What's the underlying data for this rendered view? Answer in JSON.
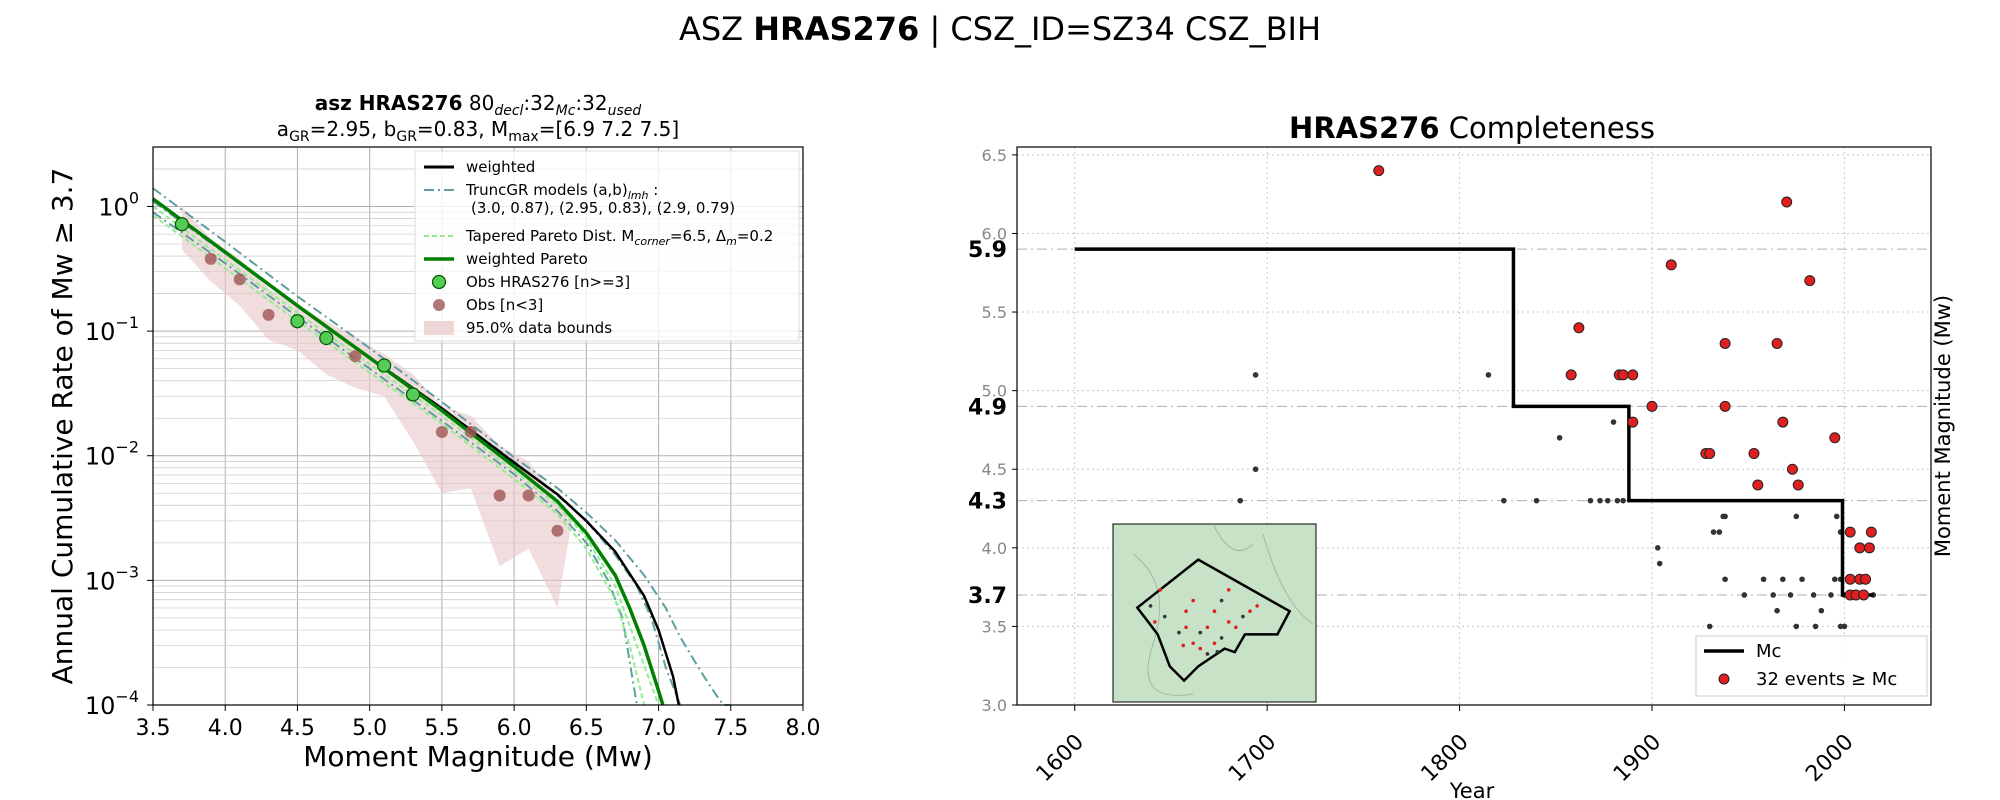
{
  "suptitle": {
    "prefix": "ASZ ",
    "bold": "HRAS276",
    "suffix": " | CSZ_ID=SZ34 CSZ_BIH"
  },
  "colors": {
    "weighted": "#000000",
    "truncgr": "#5f9ea0",
    "tapered": "#90ee90",
    "wpareto": "#008000",
    "obs_main": "#55cc55",
    "obs_low": "#a05555",
    "band": "#e8c6c6",
    "mc_events": "#e02020",
    "small_events": "#333333",
    "map_bg": "#c8e2c8"
  },
  "chart_data": [
    {
      "type": "line",
      "title_line1": {
        "bold": "asz HRAS276",
        "rest": "  80",
        "sub1": "decl",
        "t2": ":32",
        "sub2": "Mc",
        "t3": ":32",
        "sub3": "used"
      },
      "title_line2": {
        "a": "a",
        "a_sub": "GR",
        "a_val": "=2.95,  b",
        "b_sub": "GR",
        "b_val": "=0.83, M",
        "m_sub": "max",
        "m_val": "=[6.9 7.2 7.5]"
      },
      "xlabel": "Moment Magnitude (Mw)",
      "ylabel": "Annual Cumulative Rate of Mw  ≥  3.7",
      "xlim": [
        3.5,
        8.0
      ],
      "ylim": [
        0.0001,
        3
      ],
      "yscale": "log",
      "xticks": [
        "3.5",
        "4.0",
        "4.5",
        "5.0",
        "5.5",
        "6.0",
        "6.5",
        "7.0",
        "7.5",
        "8.0"
      ],
      "yticks": [
        {
          "base": "10",
          "exp": "0",
          "v": 1
        },
        {
          "base": "10",
          "exp": "−1",
          "v": 0.1
        },
        {
          "base": "10",
          "exp": "−2",
          "v": 0.01
        },
        {
          "base": "10",
          "exp": "−3",
          "v": 0.001
        },
        {
          "base": "10",
          "exp": "−4",
          "v": 0.0001
        }
      ],
      "grid": true,
      "legend_position": "top-right",
      "legend": {
        "weighted": "weighted",
        "truncgr_a": "TruncGR models (a,b)",
        "truncgr_sub": "lmh",
        "truncgr_b": " :",
        "truncgr_vals": "(3.0, 0.87), (2.95, 0.83), (2.9, 0.79)",
        "tapered_a": "Tapered Pareto Dist. M",
        "tapered_sub1": "corner",
        "tapered_b": "=6.5, Δ",
        "tapered_sub2": "m",
        "tapered_c": "=0.2",
        "wpareto": "weighted Pareto",
        "obs_main": "Obs HRAS276 [n>=3]",
        "obs_low": "Obs [n<3]",
        "band": "95.0% data bounds"
      },
      "obs_main": [
        [
          3.7,
          0.72
        ],
        [
          4.5,
          0.12
        ],
        [
          4.7,
          0.088
        ],
        [
          5.1,
          0.053
        ],
        [
          5.3,
          0.031
        ]
      ],
      "obs_low": [
        [
          3.9,
          0.38
        ],
        [
          4.1,
          0.26
        ],
        [
          4.3,
          0.135
        ],
        [
          4.9,
          0.063
        ],
        [
          5.5,
          0.0155
        ],
        [
          5.7,
          0.0155
        ],
        [
          5.9,
          0.0048
        ],
        [
          6.1,
          0.0048
        ],
        [
          6.3,
          0.0025
        ]
      ],
      "band_upper": [
        [
          3.7,
          1.0
        ],
        [
          3.9,
          0.55
        ],
        [
          4.1,
          0.38
        ],
        [
          4.3,
          0.22
        ],
        [
          4.5,
          0.16
        ],
        [
          4.7,
          0.12
        ],
        [
          4.9,
          0.09
        ],
        [
          5.1,
          0.065
        ],
        [
          5.3,
          0.045
        ],
        [
          5.5,
          0.025
        ],
        [
          5.7,
          0.021
        ],
        [
          5.9,
          0.012
        ],
        [
          6.1,
          0.009
        ],
        [
          6.3,
          0.0045
        ],
        [
          6.4,
          0.003
        ]
      ],
      "band_lower": [
        [
          3.7,
          0.45
        ],
        [
          3.9,
          0.25
        ],
        [
          4.1,
          0.16
        ],
        [
          4.3,
          0.085
        ],
        [
          4.5,
          0.07
        ],
        [
          4.7,
          0.045
        ],
        [
          4.9,
          0.035
        ],
        [
          5.1,
          0.03
        ],
        [
          5.3,
          0.013
        ],
        [
          5.5,
          0.005
        ],
        [
          5.7,
          0.0055
        ],
        [
          5.9,
          0.0013
        ],
        [
          6.1,
          0.0018
        ],
        [
          6.3,
          0.0006
        ]
      ],
      "series": [
        {
          "key": "truncgr",
          "style": "dashdot",
          "x": [
            3.5,
            4.0,
            4.5,
            5.0,
            5.5,
            6.0,
            6.3,
            6.5,
            6.7,
            6.9,
            7.05,
            7.15,
            7.3,
            7.4,
            7.45,
            7.5
          ],
          "y": [
            1.4,
            0.52,
            0.19,
            0.073,
            0.027,
            0.0097,
            0.0055,
            0.0035,
            0.0021,
            0.0011,
            0.0006,
            0.00035,
            0.00018,
            0.00012,
            0.0001,
            0.0001
          ]
        },
        {
          "key": "truncgr",
          "style": "dashdot",
          "x": [
            3.5,
            4.0,
            4.5,
            5.0,
            5.5,
            6.0,
            6.3,
            6.5,
            6.7,
            6.85,
            6.95,
            7.05,
            7.15
          ],
          "y": [
            1.1,
            0.42,
            0.16,
            0.062,
            0.024,
            0.009,
            0.0048,
            0.003,
            0.0016,
            0.0009,
            0.0005,
            0.0002,
            0.0001
          ]
        },
        {
          "key": "truncgr",
          "style": "dashdot",
          "x": [
            3.5,
            4.0,
            4.5,
            5.0,
            5.5,
            6.0,
            6.3,
            6.5,
            6.65,
            6.75,
            6.85
          ],
          "y": [
            0.9,
            0.35,
            0.13,
            0.05,
            0.019,
            0.0071,
            0.0036,
            0.002,
            0.001,
            0.0005,
            0.0001
          ]
        },
        {
          "key": "tapered",
          "style": "dashed",
          "x": [
            3.5,
            4.5,
            5.5,
            6.0,
            6.3,
            6.5,
            6.7,
            6.85,
            7.0
          ],
          "y": [
            1.0,
            0.14,
            0.021,
            0.0075,
            0.004,
            0.0022,
            0.0009,
            0.0003,
            0.0001
          ]
        },
        {
          "key": "tapered",
          "style": "dashed",
          "x": [
            3.5,
            4.5,
            5.5,
            6.0,
            6.3,
            6.5,
            6.7,
            6.8,
            6.9
          ],
          "y": [
            0.85,
            0.12,
            0.018,
            0.0065,
            0.0034,
            0.0018,
            0.0007,
            0.0003,
            0.0001
          ]
        },
        {
          "key": "weighted",
          "style": "solid",
          "x": [
            3.5,
            4.0,
            4.5,
            5.0,
            5.5,
            6.0,
            6.3,
            6.5,
            6.7,
            6.9,
            7.0,
            7.1,
            7.14
          ],
          "y": [
            1.15,
            0.43,
            0.16,
            0.061,
            0.024,
            0.0088,
            0.0049,
            0.003,
            0.0017,
            0.00075,
            0.0004,
            0.00017,
            0.0001
          ]
        },
        {
          "key": "wpareto",
          "style": "solid",
          "x": [
            3.5,
            4.0,
            4.5,
            5.0,
            5.5,
            6.0,
            6.3,
            6.5,
            6.7,
            6.8,
            6.9,
            7.0,
            7.03
          ],
          "y": [
            1.15,
            0.43,
            0.16,
            0.061,
            0.023,
            0.0082,
            0.0043,
            0.0024,
            0.0011,
            0.0006,
            0.0003,
            0.00013,
            0.0001
          ]
        }
      ]
    },
    {
      "type": "scatter",
      "title": {
        "bold": "HRAS276",
        "rest": " Completeness"
      },
      "xlabel": "Year",
      "ylabel": "Moment Magnitude (Mw)",
      "xlim": [
        1570,
        2045
      ],
      "ylim": [
        3.0,
        6.55
      ],
      "xticks": [
        "1600",
        "1700",
        "1800",
        "1900",
        "2000"
      ],
      "yticks": [
        "3.0",
        "3.5",
        "4.0",
        "4.5",
        "5.0",
        "5.5",
        "6.0",
        "6.5"
      ],
      "mc_labels": [
        "5.9",
        "4.9",
        "4.3",
        "3.7"
      ],
      "grid": true,
      "legend_position": "lower-right",
      "legend": {
        "mc": "Mc",
        "events": "32 events  ≥  Mc"
      },
      "mc_step": [
        [
          1600,
          5.9
        ],
        [
          1828,
          5.9
        ],
        [
          1828,
          4.9
        ],
        [
          1888,
          4.9
        ],
        [
          1888,
          4.3
        ],
        [
          1999,
          4.3
        ],
        [
          1999,
          3.7
        ],
        [
          2015,
          3.7
        ]
      ],
      "events": [
        [
          1758,
          6.4
        ],
        [
          1970,
          6.2
        ],
        [
          1910,
          5.8
        ],
        [
          1982,
          5.7
        ],
        [
          1862,
          5.4
        ],
        [
          1938,
          5.3
        ],
        [
          1965,
          5.3
        ],
        [
          1858,
          5.1
        ],
        [
          1883,
          5.1
        ],
        [
          1885,
          5.1
        ],
        [
          1890,
          5.1
        ],
        [
          1900,
          4.9
        ],
        [
          1938,
          4.9
        ],
        [
          1890,
          4.8
        ],
        [
          1968,
          4.8
        ],
        [
          1928,
          4.6
        ],
        [
          1930,
          4.6
        ],
        [
          1995,
          4.7
        ],
        [
          1953,
          4.6
        ],
        [
          1973,
          4.5
        ],
        [
          1976,
          4.4
        ],
        [
          1955,
          4.4
        ],
        [
          2003,
          4.1
        ],
        [
          2014,
          4.1
        ],
        [
          2008,
          4.0
        ],
        [
          2013,
          4.0
        ],
        [
          2003,
          3.8
        ],
        [
          2008,
          3.8
        ],
        [
          2011,
          3.8
        ],
        [
          2003,
          3.7
        ],
        [
          2006,
          3.7
        ],
        [
          2010,
          3.7
        ]
      ],
      "small": [
        [
          1694,
          5.1
        ],
        [
          1815,
          5.1
        ],
        [
          1694,
          4.5
        ],
        [
          1852,
          4.7
        ],
        [
          1880,
          4.8
        ],
        [
          1686,
          4.3
        ],
        [
          1823,
          4.3
        ],
        [
          1840,
          4.3
        ],
        [
          1868,
          4.3
        ],
        [
          1873,
          4.3
        ],
        [
          1877,
          4.3
        ],
        [
          1882,
          4.3
        ],
        [
          1885,
          4.3
        ],
        [
          1903,
          4.0
        ],
        [
          1904,
          3.9
        ],
        [
          1932,
          4.1
        ],
        [
          1935,
          4.1
        ],
        [
          1938,
          4.2
        ],
        [
          1937,
          4.2
        ],
        [
          1975,
          4.2
        ],
        [
          1996,
          4.2
        ],
        [
          1998,
          4.1
        ],
        [
          1938,
          3.8
        ],
        [
          1948,
          3.7
        ],
        [
          1958,
          3.8
        ],
        [
          1963,
          3.7
        ],
        [
          1968,
          3.8
        ],
        [
          1972,
          3.7
        ],
        [
          1978,
          3.8
        ],
        [
          1984,
          3.7
        ],
        [
          1988,
          3.6
        ],
        [
          1993,
          3.7
        ],
        [
          1995,
          3.8
        ],
        [
          1998,
          3.8
        ],
        [
          2000,
          3.7
        ],
        [
          2002,
          3.7
        ],
        [
          2005,
          3.7
        ],
        [
          2010,
          3.7
        ],
        [
          2015,
          3.7
        ],
        [
          1930,
          3.5
        ],
        [
          1975,
          3.5
        ],
        [
          1985,
          3.5
        ],
        [
          1998,
          3.5
        ],
        [
          2000,
          3.5
        ],
        [
          1965,
          3.6
        ]
      ]
    }
  ],
  "inset_map": {
    "description_points": [
      [
        0.05,
        0.35
      ],
      [
        0.12,
        0.2
      ],
      [
        0.08,
        0.5
      ],
      [
        0.15,
        0.45
      ],
      [
        0.3,
        0.4
      ],
      [
        0.35,
        0.3
      ],
      [
        0.4,
        0.6
      ],
      [
        0.45,
        0.55
      ],
      [
        0.5,
        0.7
      ],
      [
        0.55,
        0.65
      ],
      [
        0.6,
        0.5
      ],
      [
        0.65,
        0.55
      ],
      [
        0.7,
        0.45
      ],
      [
        0.75,
        0.4
      ],
      [
        0.8,
        0.35
      ],
      [
        0.25,
        0.6
      ],
      [
        0.3,
        0.55
      ],
      [
        0.5,
        0.4
      ],
      [
        0.55,
        0.3
      ],
      [
        0.6,
        0.2
      ],
      [
        0.4,
        0.75
      ],
      [
        0.45,
        0.8
      ],
      [
        0.35,
        0.7
      ],
      [
        0.28,
        0.72
      ],
      [
        0.52,
        0.78
      ]
    ]
  }
}
